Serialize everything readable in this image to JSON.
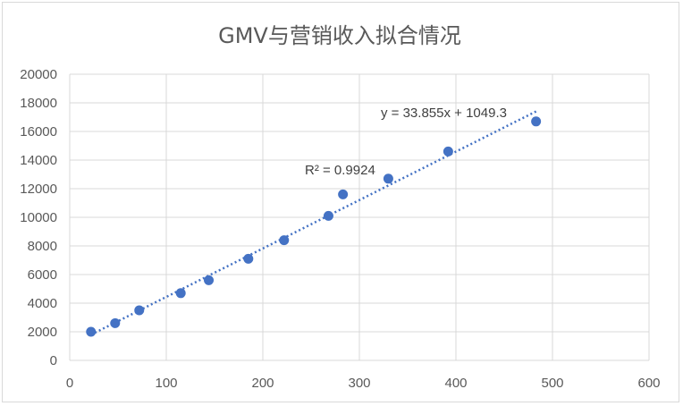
{
  "chart_data": {
    "type": "scatter",
    "title": "GMV与营销收入拟合情况",
    "xlim": [
      0,
      600
    ],
    "ylim": [
      0,
      20000
    ],
    "x_ticks": [
      "0",
      "100",
      "200",
      "300",
      "400",
      "500",
      "600"
    ],
    "y_ticks": [
      "0",
      "2000",
      "4000",
      "6000",
      "8000",
      "10000",
      "12000",
      "14000",
      "16000",
      "18000",
      "20000"
    ],
    "grid": "vertical and horizontal",
    "series": [
      {
        "x": [
          22,
          47,
          72,
          115,
          144,
          185,
          222,
          268,
          283,
          330,
          392,
          483
        ],
        "y": [
          2000,
          2600,
          3500,
          4700,
          5600,
          7100,
          8400,
          10100,
          11600,
          12700,
          14600,
          16700
        ]
      }
    ],
    "trendline": {
      "type": "linear",
      "slope": 33.855,
      "intercept": 1049.3,
      "x_range": [
        22,
        483
      ],
      "equation_label": "y = 33.855x + 1049.3",
      "r2_label": "R² = 0.9924"
    },
    "colors": {
      "points": "#4472c4",
      "trendline": "#4472c4",
      "grid": "#d9d9d9",
      "text": "#595959"
    }
  }
}
